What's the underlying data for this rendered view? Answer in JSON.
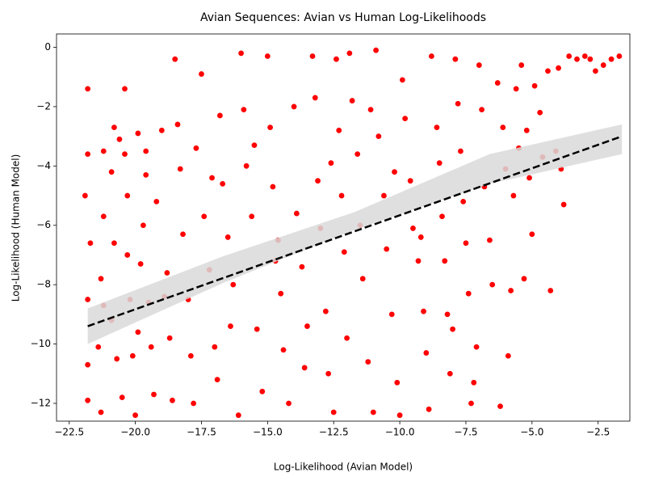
{
  "chart_data": {
    "type": "scatter",
    "title": "Avian Sequences: Avian vs Human Log-Likelihoods",
    "xlabel": "Log-Likelihood (Avian Model)",
    "ylabel": "Log-Likelihood (Human Model)",
    "xlim": [
      -22.98,
      -1.3
    ],
    "ylim": [
      -12.6,
      0.45
    ],
    "xticks": [
      {
        "value": -22.5,
        "label": "−22.5"
      },
      {
        "value": -20,
        "label": "−20.0"
      },
      {
        "value": -17.5,
        "label": "−17.5"
      },
      {
        "value": -15,
        "label": "−15.0"
      },
      {
        "value": -12.5,
        "label": "−12.5"
      },
      {
        "value": -10,
        "label": "−10.0"
      },
      {
        "value": -7.5,
        "label": "−7.5"
      },
      {
        "value": -5,
        "label": "−5.0"
      },
      {
        "value": -2.5,
        "label": "−2.5"
      }
    ],
    "yticks": [
      {
        "value": -12,
        "label": "−12"
      },
      {
        "value": -10,
        "label": "−10"
      },
      {
        "value": -8,
        "label": "−8"
      },
      {
        "value": -6,
        "label": "−6"
      },
      {
        "value": -4,
        "label": "−4"
      },
      {
        "value": -2,
        "label": "−2"
      },
      0
    ],
    "color": "#ff0000",
    "edge_color": "#ffffff",
    "points": [
      [
        -21.8,
        -1.4
      ],
      [
        -21.8,
        -3.6
      ],
      [
        -21.9,
        -5.0
      ],
      [
        -21.7,
        -6.6
      ],
      [
        -21.8,
        -8.5
      ],
      [
        -21.8,
        -10.7
      ],
      [
        -21.8,
        -11.9
      ],
      [
        -21.3,
        -12.3
      ],
      [
        -21.4,
        -10.1
      ],
      [
        -21.2,
        -8.7
      ],
      [
        -21.3,
        -7.8
      ],
      [
        -21.2,
        -5.7
      ],
      [
        -21.2,
        -3.5
      ],
      [
        -20.8,
        -2.7
      ],
      [
        -20.9,
        -4.2
      ],
      [
        -20.8,
        -6.6
      ],
      [
        -20.9,
        -9.2
      ],
      [
        -20.7,
        -10.5
      ],
      [
        -20.5,
        -11.8
      ],
      [
        -20.4,
        -1.4
      ],
      [
        -20.4,
        -3.6
      ],
      [
        -20.3,
        -5.0
      ],
      [
        -20.3,
        -7.0
      ],
      [
        -20.2,
        -8.5
      ],
      [
        -20.1,
        -10.4
      ],
      [
        -20.0,
        -12.4
      ],
      [
        -19.9,
        -9.6
      ],
      [
        -19.8,
        -7.3
      ],
      [
        -19.7,
        -6.0
      ],
      [
        -19.6,
        -4.3
      ],
      [
        -19.6,
        -3.5
      ],
      [
        -19.5,
        -8.6
      ],
      [
        -19.4,
        -10.1
      ],
      [
        -19.3,
        -11.7
      ],
      [
        -19.2,
        -5.2
      ],
      [
        -19.0,
        -2.8
      ],
      [
        -18.8,
        -7.6
      ],
      [
        -18.7,
        -9.8
      ],
      [
        -18.6,
        -11.9
      ],
      [
        -18.5,
        -0.4
      ],
      [
        -18.4,
        -2.6
      ],
      [
        -18.3,
        -4.1
      ],
      [
        -18.2,
        -6.3
      ],
      [
        -18.0,
        -8.5
      ],
      [
        -17.9,
        -10.4
      ],
      [
        -17.8,
        -12.0
      ],
      [
        -17.7,
        -3.4
      ],
      [
        -17.5,
        -0.9
      ],
      [
        -17.4,
        -5.7
      ],
      [
        -17.2,
        -7.5
      ],
      [
        -17.0,
        -10.1
      ],
      [
        -16.9,
        -11.2
      ],
      [
        -16.8,
        -2.3
      ],
      [
        -16.7,
        -4.6
      ],
      [
        -16.5,
        -6.4
      ],
      [
        -16.3,
        -8.0
      ],
      [
        -16.1,
        -12.4
      ],
      [
        -16.0,
        -0.2
      ],
      [
        -15.9,
        -2.1
      ],
      [
        -15.8,
        -4.0
      ],
      [
        -15.6,
        -5.7
      ],
      [
        -15.4,
        -9.5
      ],
      [
        -15.2,
        -11.6
      ],
      [
        -15.0,
        -0.3
      ],
      [
        -14.9,
        -2.7
      ],
      [
        -14.8,
        -4.7
      ],
      [
        -14.7,
        -7.2
      ],
      [
        -14.5,
        -8.3
      ],
      [
        -14.4,
        -10.2
      ],
      [
        -14.2,
        -12.0
      ],
      [
        -14.0,
        -2.0
      ],
      [
        -13.9,
        -5.6
      ],
      [
        -13.7,
        -7.4
      ],
      [
        -13.5,
        -9.4
      ],
      [
        -13.3,
        -0.3
      ],
      [
        -13.2,
        -1.7
      ],
      [
        -13.1,
        -4.5
      ],
      [
        -13.0,
        -6.1
      ],
      [
        -12.8,
        -8.9
      ],
      [
        -12.7,
        -11.0
      ],
      [
        -12.5,
        -12.3
      ],
      [
        -12.4,
        -0.4
      ],
      [
        -12.3,
        -2.8
      ],
      [
        -12.2,
        -5.0
      ],
      [
        -12.1,
        -6.9
      ],
      [
        -12.0,
        -9.8
      ],
      [
        -11.9,
        -0.2
      ],
      [
        -11.8,
        -1.8
      ],
      [
        -11.6,
        -3.6
      ],
      [
        -11.5,
        -6.0
      ],
      [
        -11.4,
        -7.8
      ],
      [
        -11.2,
        -10.6
      ],
      [
        -11.0,
        -12.3
      ],
      [
        -10.9,
        -0.1
      ],
      [
        -10.8,
        -3.0
      ],
      [
        -10.6,
        -5.0
      ],
      [
        -10.5,
        -6.8
      ],
      [
        -10.3,
        -9.0
      ],
      [
        -10.1,
        -11.3
      ],
      [
        -10.0,
        -12.4
      ],
      [
        -9.9,
        -1.1
      ],
      [
        -9.8,
        -2.4
      ],
      [
        -9.6,
        -4.5
      ],
      [
        -9.5,
        -6.1
      ],
      [
        -9.3,
        -7.2
      ],
      [
        -9.1,
        -8.9
      ],
      [
        -9.0,
        -10.3
      ],
      [
        -8.9,
        -12.2
      ],
      [
        -8.8,
        -0.3
      ],
      [
        -8.6,
        -2.7
      ],
      [
        -8.5,
        -3.9
      ],
      [
        -8.4,
        -5.7
      ],
      [
        -8.3,
        -7.2
      ],
      [
        -8.2,
        -9.0
      ],
      [
        -8.1,
        -11.0
      ],
      [
        -7.9,
        -0.4
      ],
      [
        -7.8,
        -1.9
      ],
      [
        -7.7,
        -3.5
      ],
      [
        -7.6,
        -5.2
      ],
      [
        -7.5,
        -6.6
      ],
      [
        -7.4,
        -8.3
      ],
      [
        -7.2,
        -11.3
      ],
      [
        -7.1,
        -10.1
      ],
      [
        -7.0,
        -0.6
      ],
      [
        -6.9,
        -2.1
      ],
      [
        -6.8,
        -4.7
      ],
      [
        -6.6,
        -6.5
      ],
      [
        -6.5,
        -8.0
      ],
      [
        -6.3,
        -1.2
      ],
      [
        -6.1,
        -2.7
      ],
      [
        -6.0,
        -4.1
      ],
      [
        -5.9,
        -10.4
      ],
      [
        -5.8,
        -8.2
      ],
      [
        -5.7,
        -5.0
      ],
      [
        -5.6,
        -1.4
      ],
      [
        -5.5,
        -3.4
      ],
      [
        -5.4,
        -0.6
      ],
      [
        -5.2,
        -2.8
      ],
      [
        -5.1,
        -4.4
      ],
      [
        -5.0,
        -6.3
      ],
      [
        -4.9,
        -1.3
      ],
      [
        -4.7,
        -2.2
      ],
      [
        -4.6,
        -3.7
      ],
      [
        -4.4,
        -0.8
      ],
      [
        -4.3,
        -8.2
      ],
      [
        -4.1,
        -3.5
      ],
      [
        -4.0,
        -0.7
      ],
      [
        -3.8,
        -5.3
      ],
      [
        -3.6,
        -0.3
      ],
      [
        -3.3,
        -0.4
      ],
      [
        -3.0,
        -0.3
      ],
      [
        -2.8,
        -0.4
      ],
      [
        -2.6,
        -0.8
      ],
      [
        -2.3,
        -0.6
      ],
      [
        -1.7,
        -0.3
      ],
      [
        -2.0,
        -0.4
      ],
      [
        -3.9,
        -4.1
      ],
      [
        -5.3,
        -7.8
      ],
      [
        -6.2,
        -12.1
      ],
      [
        -7.3,
        -12.0
      ],
      [
        -8.0,
        -9.5
      ],
      [
        -9.2,
        -6.4
      ],
      [
        -10.2,
        -4.2
      ],
      [
        -11.1,
        -2.1
      ],
      [
        -12.6,
        -3.9
      ],
      [
        -13.6,
        -10.8
      ],
      [
        -14.6,
        -6.5
      ],
      [
        -15.5,
        -3.3
      ],
      [
        -16.4,
        -9.4
      ],
      [
        -17.1,
        -4.4
      ],
      [
        -18.9,
        -8.4
      ],
      [
        -19.9,
        -2.9
      ],
      [
        -20.6,
        -3.1
      ]
    ],
    "fit": {
      "x": [
        -21.8,
        -1.6
      ],
      "y": [
        -9.4,
        -3.0
      ],
      "color": "#000000"
    },
    "band": {
      "x": [
        -21.8,
        -16.7,
        -11.7,
        -6.6,
        -1.6
      ],
      "lower": [
        -10.0,
        -7.95,
        -6.15,
        -4.6,
        -3.6
      ],
      "upper": [
        -8.8,
        -7.05,
        -5.55,
        -3.6,
        -2.6
      ],
      "color": "#d9d9d9"
    }
  }
}
